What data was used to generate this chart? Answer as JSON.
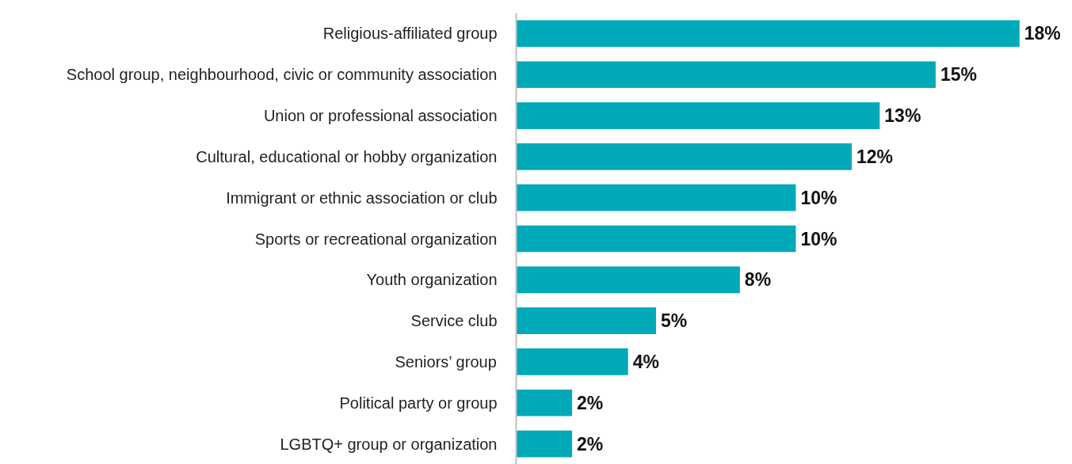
{
  "chart_data": {
    "type": "bar",
    "orientation": "horizontal",
    "tick_labels": "y",
    "categories": [
      "Religious-affiliated group",
      "School group, neighbourhood, civic or community association",
      "Union or professional association",
      "Cultural, educational or hobby organization",
      "Immigrant or ethnic association or club",
      "Sports or recreational organization",
      "Youth organization",
      "Service club",
      "Seniors’ group",
      "Political party or group",
      "LGBTQ+ group or organization"
    ],
    "values": [
      18,
      15,
      13,
      12,
      10,
      10,
      8,
      5,
      4,
      2,
      2
    ],
    "value_labels": [
      "18%",
      "15%",
      "13%",
      "12%",
      "10%",
      "10%",
      "8%",
      "5%",
      "4%",
      "2%",
      "2%"
    ],
    "color": "#00a9b7"
  }
}
